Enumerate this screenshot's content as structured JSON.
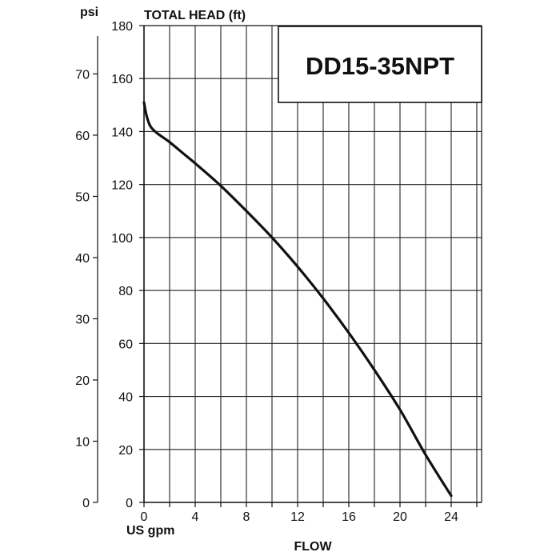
{
  "chart_data": {
    "type": "line",
    "title": "DD15-35NPT",
    "xlabel": "FLOW",
    "x_unit_label": "US gpm",
    "ylabel": "TOTAL HEAD (ft)",
    "y2label": "psi",
    "xlim": [
      0,
      26
    ],
    "ylim": [
      0,
      180
    ],
    "y2lim": [
      0,
      77.9
    ],
    "x_ticks": [
      0,
      4,
      8,
      12,
      16,
      20,
      24
    ],
    "y_ticks": [
      0,
      20,
      40,
      60,
      80,
      100,
      120,
      140,
      160,
      180
    ],
    "y2_ticks": [
      0,
      10,
      20,
      30,
      40,
      50,
      60,
      70
    ],
    "grid": true,
    "series": [
      {
        "x": [
          0,
          0.2,
          0.5,
          1,
          2,
          3,
          4,
          6,
          8,
          10,
          12,
          14,
          16,
          18,
          20,
          22,
          24
        ],
        "y": [
          151,
          146,
          142,
          139.5,
          136,
          132,
          128,
          119.5,
          110,
          100,
          89,
          77,
          64,
          50,
          35,
          18,
          2.5
        ]
      }
    ]
  }
}
